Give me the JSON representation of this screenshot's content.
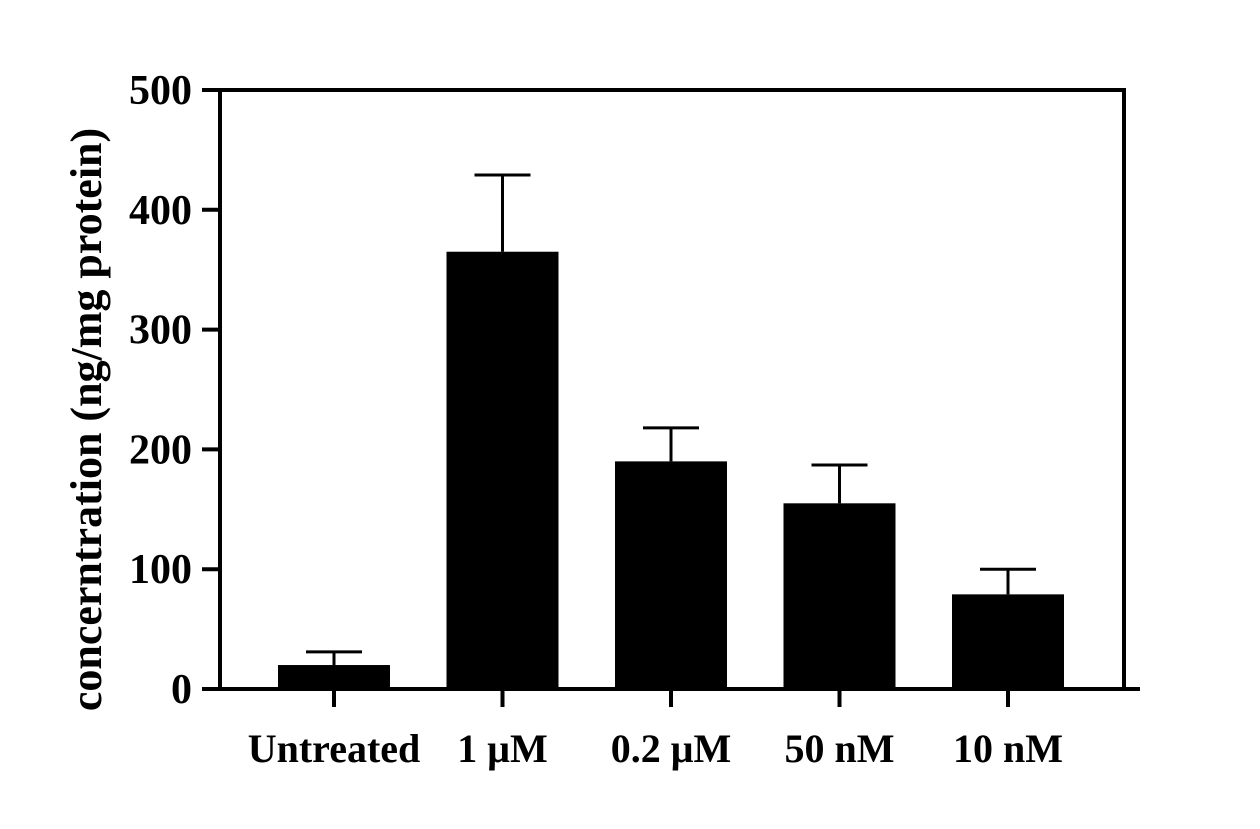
{
  "chart_data": {
    "type": "bar",
    "title": "",
    "xlabel": "",
    "ylabel": "concerntration (ng/mg protein)",
    "ylim": [
      0,
      500
    ],
    "yticks": [
      "0",
      "100",
      "200",
      "300",
      "400",
      "500"
    ],
    "categories": [
      "Untreated",
      "1 μM",
      "0.2 μM",
      "50 nM",
      "10 nM"
    ],
    "values": [
      20,
      365,
      190,
      155,
      79
    ],
    "errors": [
      11,
      64,
      28,
      32,
      21
    ],
    "grid": false,
    "legend": "none",
    "bar_color": "#000000",
    "axis_color": "#000000"
  }
}
